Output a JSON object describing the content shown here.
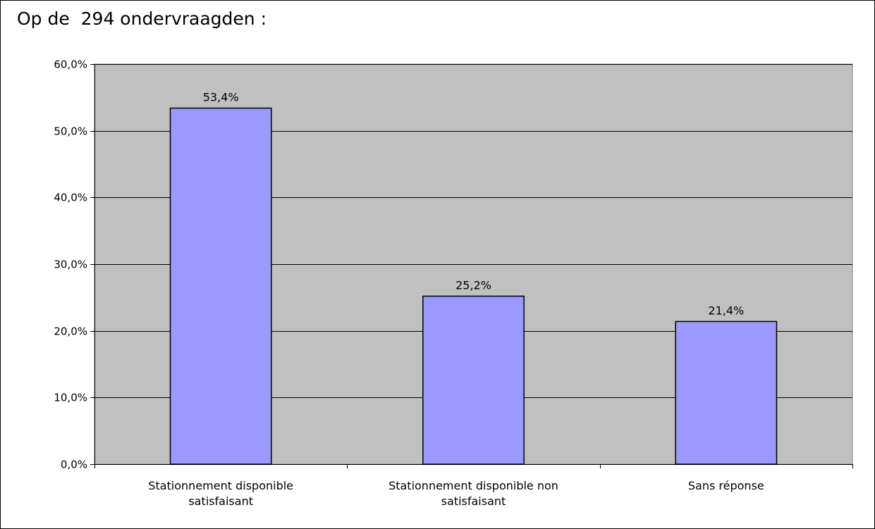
{
  "header": {
    "title": "Op de  294 ondervraagden :"
  },
  "chart_data": {
    "type": "bar",
    "categories": [
      [
        "Stationnement disponible",
        "satisfaisant"
      ],
      [
        "Stationnement disponible non",
        "satisfaisant"
      ],
      [
        "Sans réponse"
      ]
    ],
    "values": [
      53.4,
      25.2,
      21.4
    ],
    "data_labels": [
      "53,4%",
      "25,2%",
      "21,4%"
    ],
    "ylim": [
      0,
      60
    ],
    "yticks": [
      0,
      10,
      20,
      30,
      40,
      50,
      60
    ],
    "ytick_labels": [
      "0,0%",
      "10,0%",
      "20,0%",
      "30,0%",
      "40,0%",
      "50,0%",
      "60,0%"
    ],
    "grid": true,
    "legend": "none",
    "colors": {
      "bar": "#9999ff",
      "plot_bg": "#c0c0c0",
      "grid": "#000000",
      "bar_border": "#000000"
    }
  }
}
